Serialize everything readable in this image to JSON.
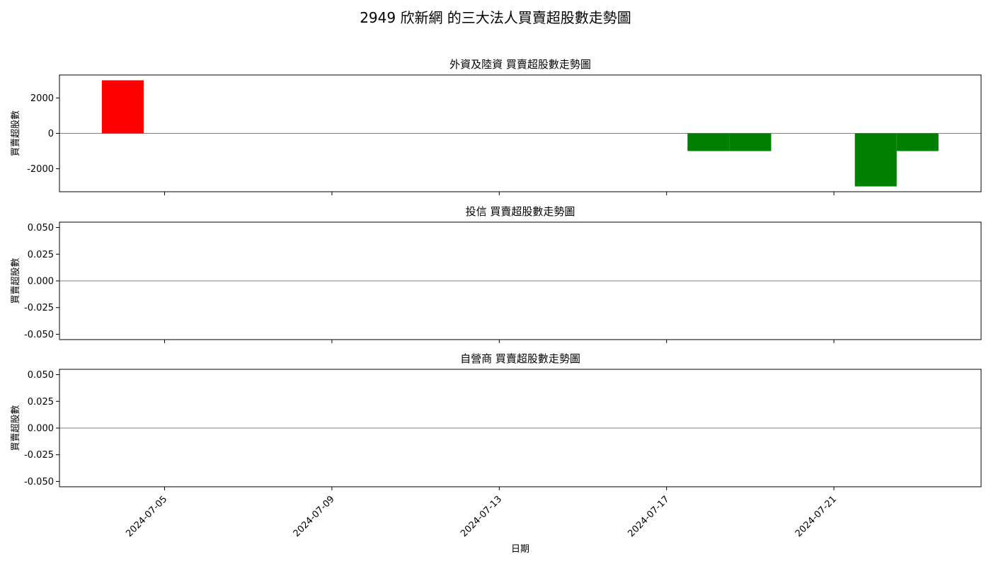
{
  "chart_data": {
    "type": "bar",
    "title": "2949 欣新網 的三大法人買賣超股數走勢圖",
    "xlabel": "日期",
    "x_ticks": [
      "2024-07-05",
      "2024-07-09",
      "2024-07-13",
      "2024-07-17",
      "2024-07-21"
    ],
    "colors": {
      "positive": "#ff0000",
      "negative": "#008000",
      "zero_line": "#808080"
    },
    "subplots": [
      {
        "title": "外資及陸資 買賣超股數走勢圖",
        "ylabel": "買賣超股數",
        "ylim": [
          -3300,
          3300
        ],
        "y_ticks": [
          2000,
          0,
          -2000
        ],
        "y_tick_labels": [
          "2000",
          "0",
          "-2000"
        ],
        "series": [
          {
            "values": [
              {
                "date": "2024-07-04",
                "value": 3000
              },
              {
                "date": "2024-07-18",
                "value": -1000
              },
              {
                "date": "2024-07-19",
                "value": -1000
              },
              {
                "date": "2024-07-22",
                "value": -3000
              },
              {
                "date": "2024-07-23",
                "value": -1000
              }
            ]
          }
        ]
      },
      {
        "title": "投信 買賣超股數走勢圖",
        "ylabel": "買賣超股數",
        "ylim": [
          -0.055,
          0.055
        ],
        "y_ticks": [
          0.05,
          0.025,
          0,
          -0.025,
          -0.05
        ],
        "y_tick_labels": [
          "0.050",
          "0.025",
          "0.000",
          "-0.025",
          "-0.050"
        ],
        "series": [
          {
            "values": []
          }
        ]
      },
      {
        "title": "自營商 買賣超股數走勢圖",
        "ylabel": "買賣超股數",
        "ylim": [
          -0.055,
          0.055
        ],
        "y_ticks": [
          0.05,
          0.025,
          0,
          -0.025,
          -0.05
        ],
        "y_tick_labels": [
          "0.050",
          "0.025",
          "0.000",
          "-0.025",
          "-0.050"
        ],
        "series": [
          {
            "values": []
          }
        ]
      }
    ]
  }
}
